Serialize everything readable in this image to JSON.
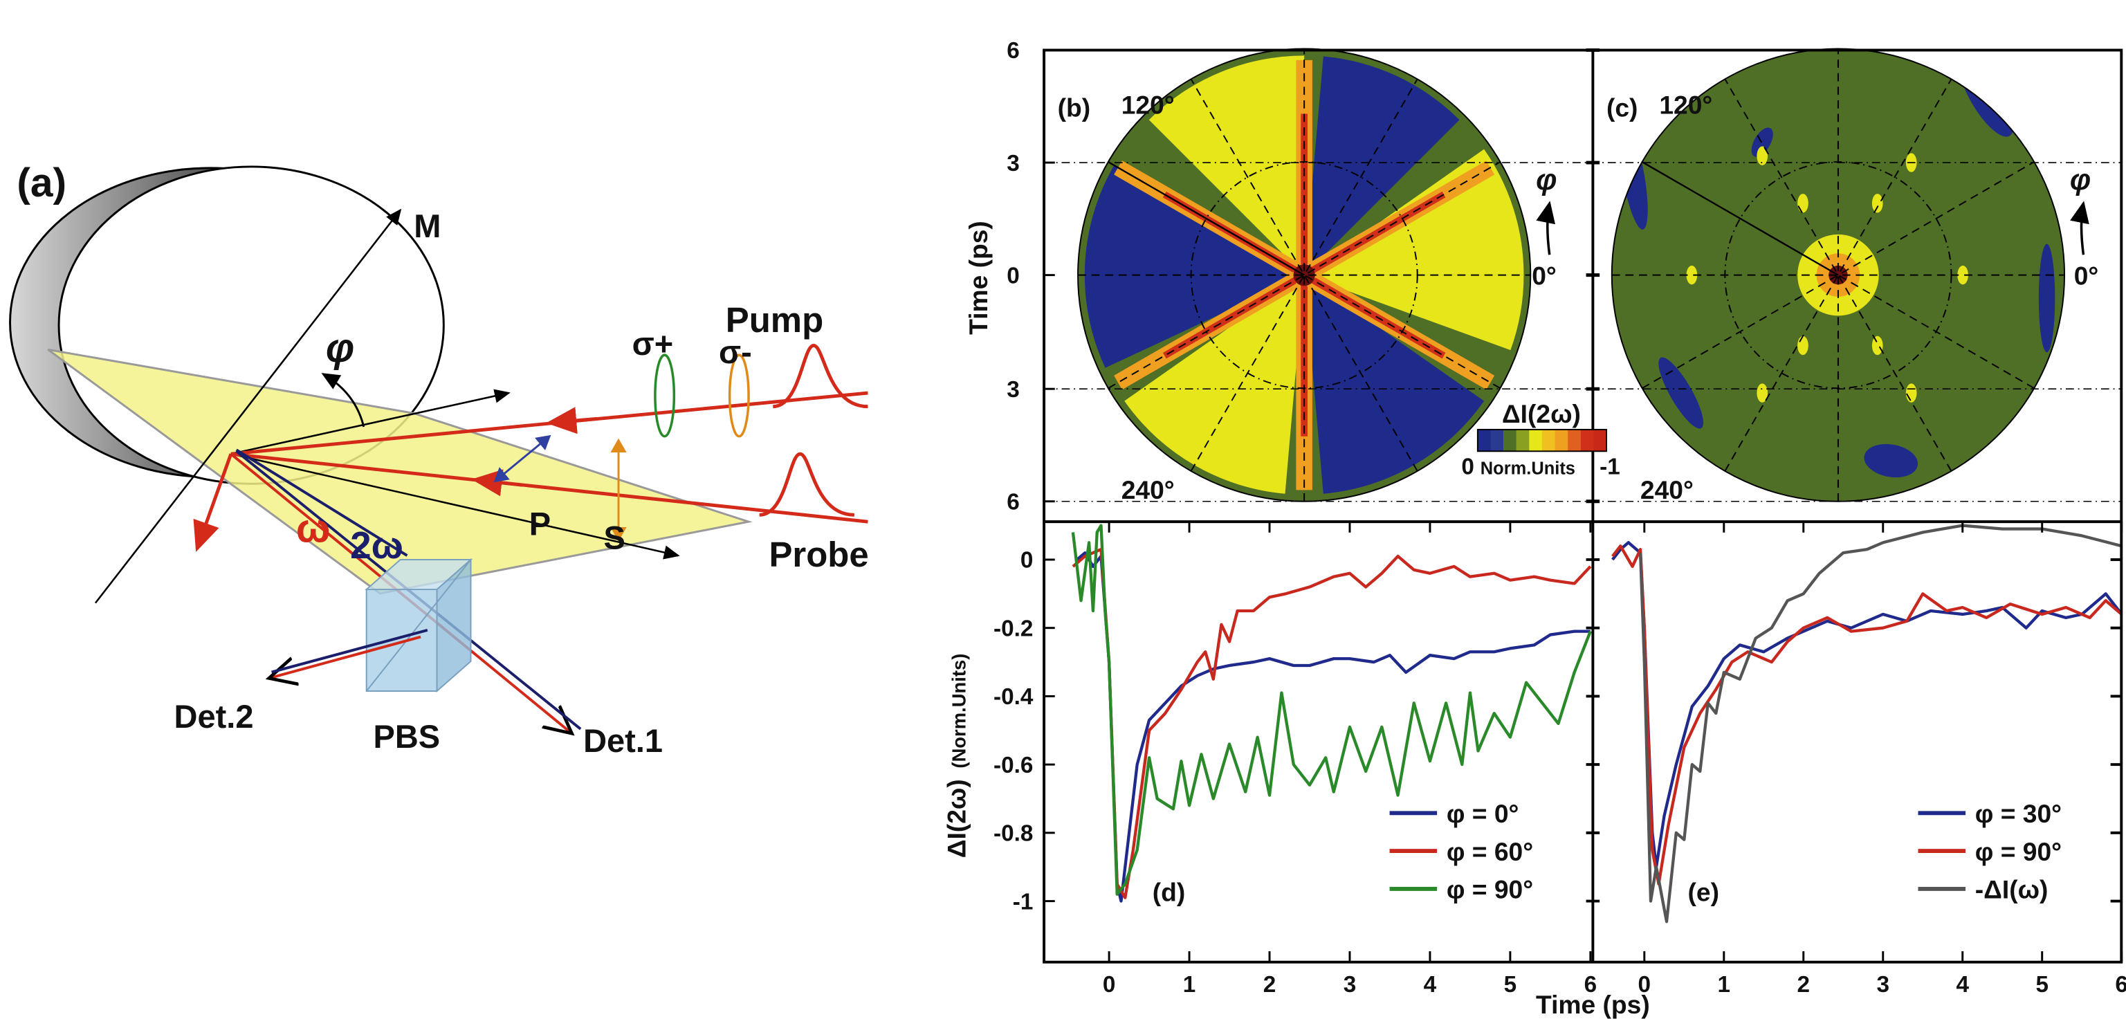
{
  "panel_a": {
    "label": "(a)",
    "mirror_axis": "M",
    "angle": "φ",
    "sigma_plus": "σ+",
    "sigma_minus": "σ-",
    "pump": "Pump",
    "probe": "Probe",
    "p_pol": "P",
    "s_pol": "S",
    "omega": "ω",
    "two_omega": "2ω",
    "pbs": "PBS",
    "det1": "Det.1",
    "det2": "Det.2",
    "colors": {
      "beam": "#d42a1a",
      "shg": "#1b1f6b",
      "plane": "#f5f28a",
      "sigma_plus": "#2a8a2a",
      "sigma_minus": "#e08a1a",
      "cube": "#a9cfe8"
    }
  },
  "chart_data": [
    {
      "type": "heatmap",
      "panel": "(b)",
      "projection": "polar",
      "ylabel": "Time (ps)",
      "radial_ticks": [
        "6",
        "3",
        "0",
        "3",
        "6"
      ],
      "angle_labels": [
        "120°",
        "240°",
        "0°"
      ],
      "angle_symbol": "φ",
      "colorbar": {
        "title": "ΔI(2ω)",
        "min_label": "0",
        "units": "Norm.Units",
        "max_label": "-1",
        "colors": [
          "#1e2b8a",
          "#4f6e26",
          "#e6e61a",
          "#f0a020",
          "#d0301a"
        ]
      },
      "sectors_deg": [
        {
          "from": 0,
          "to": 35,
          "level": "yellow"
        },
        {
          "from": 45,
          "to": 85,
          "level": "blue"
        },
        {
          "from": 90,
          "to": 135,
          "level": "yellow"
        },
        {
          "from": 150,
          "to": 205,
          "level": "blue"
        },
        {
          "from": 215,
          "to": 265,
          "level": "yellow"
        },
        {
          "from": 275,
          "to": 325,
          "level": "blue"
        },
        {
          "from": 340,
          "to": 360,
          "level": "yellow"
        }
      ],
      "red_arms_deg": [
        90,
        150,
        210,
        270,
        330,
        30
      ]
    },
    {
      "type": "heatmap",
      "panel": "(c)",
      "projection": "polar",
      "radial_ticks": [
        "6",
        "3",
        "0",
        "3",
        "6"
      ],
      "angle_labels": [
        "120°",
        "240°",
        "0°"
      ],
      "angle_symbol": "φ"
    },
    {
      "type": "line",
      "panel": "(d)",
      "ylabel": "ΔI(2ω)",
      "ylabel_units": "(Norm.Units)",
      "xlabel": "Time (ps)",
      "xlim": [
        -0.8,
        6
      ],
      "ylim": [
        -1.18,
        0.1
      ],
      "xticks": [
        "0",
        "1",
        "2",
        "3",
        "4",
        "5",
        "6"
      ],
      "yticks": [
        "0",
        "-0.2",
        "-0.4",
        "-0.6",
        "-0.8",
        "-1"
      ],
      "legend": "bottom-right",
      "series": [
        {
          "name": "φ = 0°",
          "color": "#1f2a8c",
          "x": [
            -0.4,
            -0.3,
            -0.2,
            -0.1,
            0,
            0.1,
            0.15,
            0.25,
            0.35,
            0.5,
            0.7,
            0.9,
            1.1,
            1.3,
            1.5,
            1.8,
            2,
            2.3,
            2.5,
            2.8,
            3,
            3.3,
            3.5,
            3.7,
            4,
            4.3,
            4.5,
            4.8,
            5,
            5.3,
            5.5,
            5.8,
            6
          ],
          "y": [
            0,
            0.02,
            -0.02,
            0.01,
            -0.3,
            -0.95,
            -1.0,
            -0.8,
            -0.6,
            -0.47,
            -0.42,
            -0.37,
            -0.34,
            -0.32,
            -0.31,
            -0.3,
            -0.29,
            -0.31,
            -0.31,
            -0.29,
            -0.29,
            -0.3,
            -0.28,
            -0.33,
            -0.28,
            -0.29,
            -0.27,
            -0.27,
            -0.26,
            -0.25,
            -0.22,
            -0.21,
            -0.21
          ]
        },
        {
          "name": "φ = 60°",
          "color": "#c8281e",
          "x": [
            -0.45,
            -0.3,
            -0.1,
            0,
            0.1,
            0.2,
            0.3,
            0.5,
            0.7,
            0.9,
            1.1,
            1.2,
            1.3,
            1.4,
            1.5,
            1.6,
            1.8,
            2,
            2.2,
            2.5,
            2.8,
            3,
            3.2,
            3.4,
            3.6,
            3.8,
            4,
            4.3,
            4.5,
            4.8,
            5,
            5.3,
            5.5,
            5.8,
            6
          ],
          "y": [
            -0.02,
            0.01,
            0.03,
            -0.3,
            -0.95,
            -0.99,
            -0.85,
            -0.5,
            -0.45,
            -0.38,
            -0.3,
            -0.27,
            -0.35,
            -0.19,
            -0.24,
            -0.15,
            -0.15,
            -0.11,
            -0.1,
            -0.08,
            -0.05,
            -0.04,
            -0.08,
            -0.04,
            0.01,
            -0.03,
            -0.04,
            -0.02,
            -0.05,
            -0.04,
            -0.06,
            -0.05,
            -0.06,
            -0.07,
            -0.02
          ]
        },
        {
          "name": "φ = 90°",
          "color": "#2a8a2a",
          "x": [
            -0.45,
            -0.35,
            -0.25,
            -0.2,
            -0.15,
            -0.1,
            -0.05,
            0,
            0.1,
            0.2,
            0.35,
            0.5,
            0.6,
            0.8,
            0.9,
            1,
            1.15,
            1.3,
            1.5,
            1.7,
            1.85,
            2,
            2.15,
            2.3,
            2.5,
            2.7,
            2.8,
            3,
            3.2,
            3.4,
            3.6,
            3.8,
            4,
            4.2,
            4.4,
            4.5,
            4.6,
            4.8,
            5,
            5.2,
            5.4,
            5.6,
            5.8,
            6
          ],
          "y": [
            0.08,
            -0.12,
            0.05,
            -0.15,
            0.08,
            0.1,
            -0.15,
            -0.3,
            -0.98,
            -0.95,
            -0.85,
            -0.58,
            -0.7,
            -0.73,
            -0.59,
            -0.72,
            -0.57,
            -0.7,
            -0.54,
            -0.68,
            -0.52,
            -0.69,
            -0.39,
            -0.6,
            -0.66,
            -0.58,
            -0.68,
            -0.49,
            -0.62,
            -0.49,
            -0.69,
            -0.42,
            -0.59,
            -0.42,
            -0.6,
            -0.39,
            -0.56,
            -0.45,
            -0.52,
            -0.36,
            -0.42,
            -0.48,
            -0.33,
            -0.21
          ]
        }
      ]
    },
    {
      "type": "line",
      "panel": "(e)",
      "xlabel": "Time (ps)",
      "xlim": [
        -0.65,
        6
      ],
      "ylim": [
        -1.18,
        0.1
      ],
      "xticks": [
        "0",
        "1",
        "2",
        "3",
        "4",
        "5",
        "6"
      ],
      "legend": "bottom-right",
      "series": [
        {
          "name": "φ = 30°",
          "color": "#1f2a8c",
          "x": [
            -0.4,
            -0.3,
            -0.2,
            -0.05,
            0,
            0.1,
            0.15,
            0.25,
            0.4,
            0.6,
            0.8,
            1,
            1.2,
            1.5,
            1.8,
            2,
            2.3,
            2.6,
            3,
            3.3,
            3.6,
            4,
            4.3,
            4.5,
            4.8,
            5,
            5.3,
            5.5,
            5.8,
            6
          ],
          "y": [
            0,
            0.03,
            0.05,
            0.02,
            -0.2,
            -0.8,
            -0.9,
            -0.75,
            -0.6,
            -0.43,
            -0.37,
            -0.29,
            -0.25,
            -0.27,
            -0.23,
            -0.21,
            -0.18,
            -0.2,
            -0.16,
            -0.18,
            -0.15,
            -0.16,
            -0.15,
            -0.14,
            -0.2,
            -0.15,
            -0.17,
            -0.16,
            -0.1,
            -0.16
          ]
        },
        {
          "name": "φ = 90°",
          "color": "#c8281e",
          "x": [
            -0.4,
            -0.3,
            -0.15,
            -0.05,
            0,
            0.1,
            0.18,
            0.3,
            0.5,
            0.7,
            0.9,
            1.1,
            1.3,
            1.6,
            1.8,
            2,
            2.3,
            2.6,
            3,
            3.3,
            3.5,
            3.8,
            4,
            4.3,
            4.6,
            5,
            5.3,
            5.6,
            5.8,
            6
          ],
          "y": [
            0.01,
            0.04,
            -0.02,
            0.03,
            -0.2,
            -0.85,
            -0.95,
            -0.78,
            -0.55,
            -0.45,
            -0.38,
            -0.3,
            -0.27,
            -0.3,
            -0.24,
            -0.2,
            -0.17,
            -0.21,
            -0.2,
            -0.18,
            -0.1,
            -0.15,
            -0.14,
            -0.17,
            -0.13,
            -0.16,
            -0.14,
            -0.17,
            -0.12,
            -0.16
          ]
        },
        {
          "name": "-ΔI(ω)",
          "color": "#555555",
          "x": [
            -0.05,
            0,
            0.08,
            0.15,
            0.28,
            0.4,
            0.5,
            0.6,
            0.7,
            0.8,
            0.9,
            1,
            1.2,
            1.4,
            1.6,
            1.8,
            2,
            2.2,
            2.5,
            2.8,
            3,
            3.5,
            4,
            4.5,
            5,
            5.5,
            6
          ],
          "y": [
            0.02,
            -0.3,
            -1.0,
            -0.9,
            -1.06,
            -0.8,
            -0.82,
            -0.6,
            -0.62,
            -0.42,
            -0.45,
            -0.33,
            -0.35,
            -0.23,
            -0.2,
            -0.12,
            -0.1,
            -0.04,
            0.02,
            0.03,
            0.05,
            0.08,
            0.1,
            0.09,
            0.09,
            0.07,
            0.04
          ]
        }
      ]
    }
  ],
  "labels": {
    "b": "(b)",
    "c": "(c)",
    "d": "(d)",
    "e": "(e)"
  }
}
